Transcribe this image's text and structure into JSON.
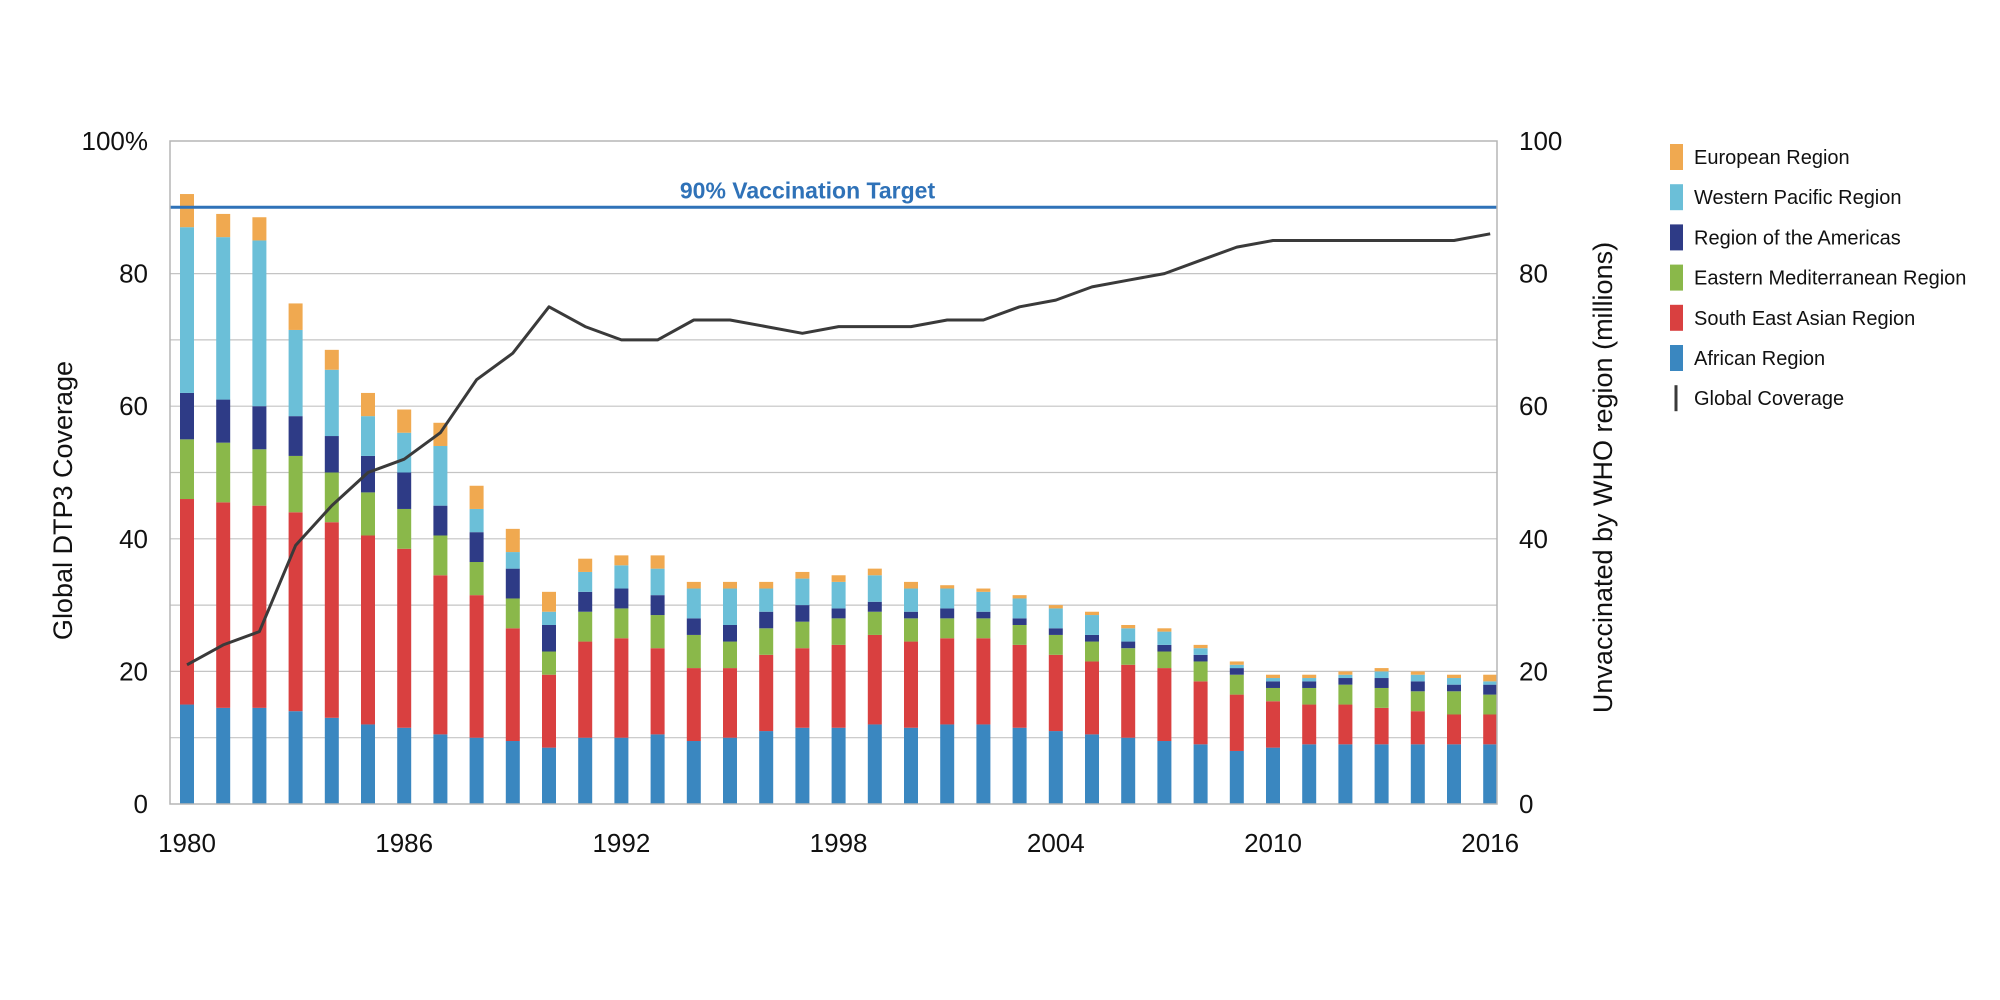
{
  "chart_data": {
    "type": "bar",
    "stacked": true,
    "x_tick_labels": [
      "1980",
      "1986",
      "1992",
      "1998",
      "2004",
      "2010",
      "2016"
    ],
    "left_axis": {
      "label": "Global DTP3 Coverage",
      "range": [
        0,
        100
      ],
      "tick_labels": [
        "0",
        "20",
        "40",
        "60",
        "80",
        "100%"
      ]
    },
    "right_axis": {
      "label": "Unvaccinated by WHO region (millions)",
      "range": [
        0,
        100
      ],
      "tick_labels": [
        "0",
        "20",
        "40",
        "60",
        "80",
        "100"
      ]
    },
    "grid": true,
    "target_line": {
      "label": "90% Vaccination Target",
      "value": 90,
      "color": "#2f72b8"
    },
    "legend_position": "right",
    "categories": [
      1980,
      1981,
      1982,
      1983,
      1984,
      1985,
      1986,
      1987,
      1988,
      1989,
      1990,
      1991,
      1992,
      1993,
      1994,
      1995,
      1996,
      1997,
      1998,
      1999,
      2000,
      2001,
      2002,
      2003,
      2004,
      2005,
      2006,
      2007,
      2008,
      2009,
      2010,
      2011,
      2012,
      2013,
      2014,
      2015,
      2016
    ],
    "series": [
      {
        "name": "African Region",
        "color": "#3a87c0",
        "values": [
          15,
          14.5,
          14.5,
          14,
          13,
          12,
          11.5,
          10.5,
          10,
          9.5,
          8.5,
          10,
          10,
          10.5,
          9.5,
          10,
          11,
          11.5,
          11.5,
          12,
          11.5,
          12,
          12,
          11.5,
          11,
          10.5,
          10,
          9.5,
          9,
          8,
          8.5,
          9,
          9,
          9,
          9,
          9,
          9
        ]
      },
      {
        "name": "South East Asian Region",
        "color": "#d94040",
        "values": [
          31,
          31,
          30.5,
          30,
          29.5,
          28.5,
          27,
          24,
          21.5,
          17,
          11,
          14.5,
          15,
          13,
          11,
          10.5,
          11.5,
          12,
          12.5,
          13.5,
          13,
          13,
          13,
          12.5,
          11.5,
          11,
          11,
          11,
          9.5,
          8.5,
          7,
          6,
          6,
          5.5,
          5,
          4.5,
          4.5
        ]
      },
      {
        "name": "Eastern Mediterranean Region",
        "color": "#8ab84a",
        "values": [
          9,
          9,
          8.5,
          8.5,
          7.5,
          6.5,
          6,
          6,
          5,
          4.5,
          3.5,
          4.5,
          4.5,
          5,
          5,
          4,
          4,
          4,
          4,
          3.5,
          3.5,
          3,
          3,
          3,
          3,
          3,
          2.5,
          2.5,
          3,
          3,
          2,
          2.5,
          3,
          3,
          3,
          3.5,
          3
        ]
      },
      {
        "name": "Region of the Americas",
        "color": "#2e3b86",
        "values": [
          7,
          6.5,
          6.5,
          6,
          5.5,
          5.5,
          5.5,
          4.5,
          4.5,
          4.5,
          4,
          3,
          3,
          3,
          2.5,
          2.5,
          2.5,
          2.5,
          1.5,
          1.5,
          1,
          1.5,
          1,
          1,
          1,
          1,
          1,
          1,
          1,
          1,
          1,
          1,
          1,
          1.5,
          1.5,
          1,
          1.5
        ]
      },
      {
        "name": "Western Pacific Region",
        "color": "#6bbfd8",
        "values": [
          25,
          24.5,
          25,
          13,
          10,
          6,
          6,
          9,
          3.5,
          2.5,
          2,
          3,
          3.5,
          4,
          4.5,
          5.5,
          3.5,
          4,
          4,
          4,
          3.5,
          3,
          3,
          3,
          3,
          3,
          2,
          2,
          1,
          0.5,
          0.5,
          0.5,
          0.5,
          1,
          1,
          1,
          0.5
        ]
      },
      {
        "name": "European Region",
        "color": "#f0a950",
        "values": [
          5,
          3.5,
          3.5,
          4,
          3,
          3.5,
          3.5,
          3.5,
          3.5,
          3.5,
          3,
          2,
          1.5,
          2,
          1,
          1,
          1,
          1,
          1,
          1,
          1,
          0.5,
          0.5,
          0.5,
          0.5,
          0.5,
          0.5,
          0.5,
          0.5,
          0.5,
          0.5,
          0.5,
          0.5,
          0.5,
          0.5,
          0.5,
          1
        ]
      }
    ],
    "line_series": {
      "name": "Global Coverage",
      "color": "#3a3a3a",
      "values": [
        21,
        24,
        26,
        39,
        45,
        50,
        52,
        56,
        64,
        68,
        75,
        72,
        70,
        70,
        73,
        73,
        72,
        71,
        72,
        72,
        72,
        73,
        73,
        75,
        76,
        78,
        79,
        80,
        82,
        84,
        85,
        85,
        85,
        85,
        85,
        85,
        86
      ]
    }
  }
}
